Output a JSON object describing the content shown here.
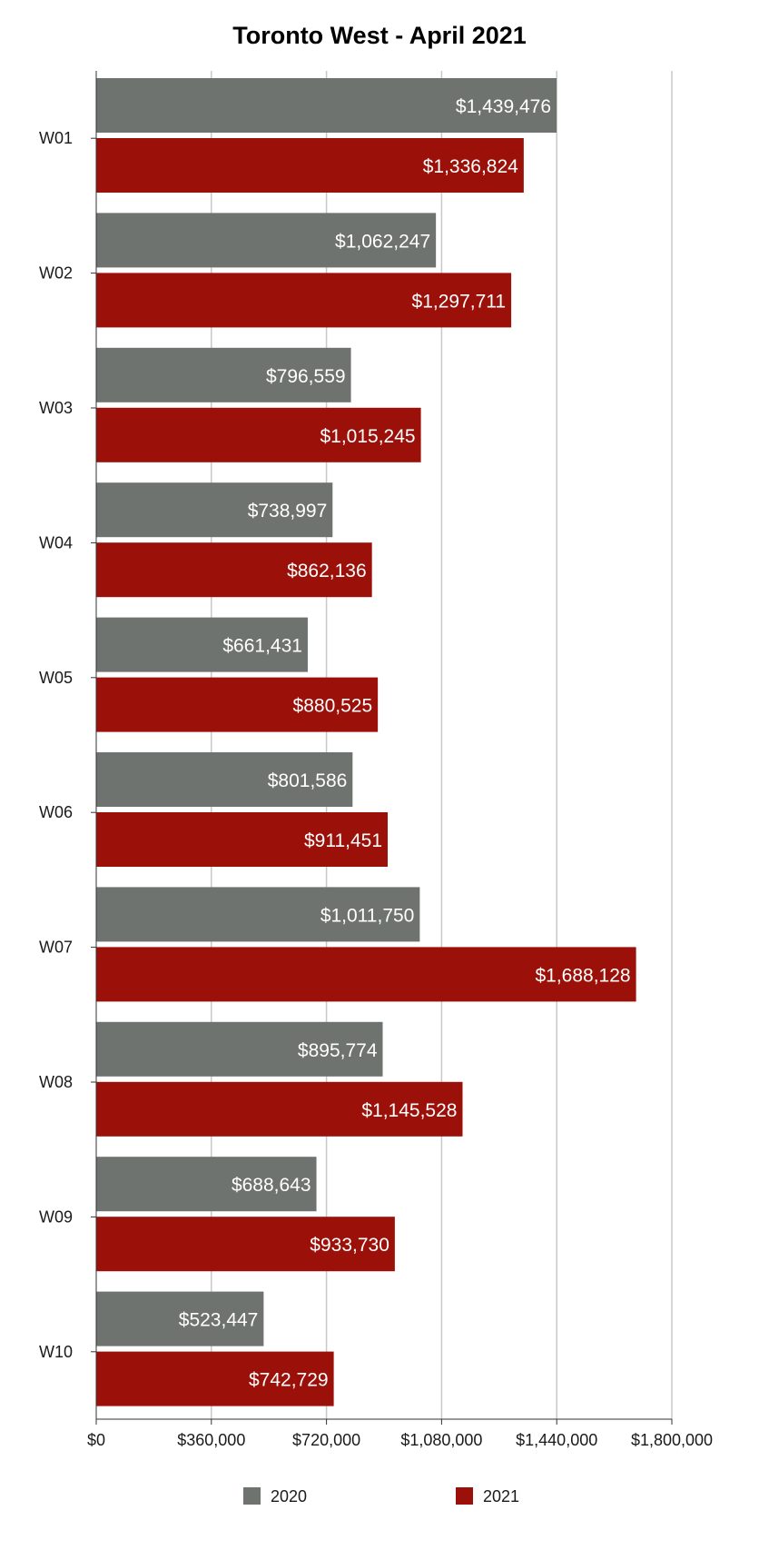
{
  "chart_data": {
    "type": "bar",
    "orientation": "horizontal",
    "title": "Toronto West - April 2021",
    "xlabel": "",
    "ylabel": "",
    "categories": [
      "W01",
      "W02",
      "W03",
      "W04",
      "W05",
      "W06",
      "W07",
      "W08",
      "W09",
      "W10"
    ],
    "series": [
      {
        "name": "2020",
        "color": "#6e7370",
        "values": [
          1439476,
          1062247,
          796559,
          738997,
          661431,
          801586,
          1011750,
          895774,
          688643,
          523447
        ],
        "labels": [
          "$1,439,476",
          "$1,062,247",
          "$796,559",
          "$738,997",
          "$661,431",
          "$801,586",
          "$1,011,750",
          "$895,774",
          "$688,643",
          "$523,447"
        ]
      },
      {
        "name": "2021",
        "color": "#9b1109",
        "values": [
          1336824,
          1297711,
          1015245,
          862136,
          880525,
          911451,
          1688128,
          1145528,
          933730,
          742729
        ],
        "labels": [
          "$1,336,824",
          "$1,297,711",
          "$1,015,245",
          "$862,136",
          "$880,525",
          "$911,451",
          "$1,688,128",
          "$1,145,528",
          "$933,730",
          "$742,729"
        ]
      }
    ],
    "xlim": [
      0,
      1800000
    ],
    "xticks": [
      0,
      360000,
      720000,
      1080000,
      1440000,
      1800000
    ],
    "xtick_labels": [
      "$0",
      "$360,000",
      "$720,000",
      "$1,080,000",
      "$1,440,000",
      "$1,800,000"
    ],
    "grid": "vertical",
    "legend": "bottom",
    "colors": {
      "grid": "#c8c8c8",
      "axis": "#333333",
      "label_text": "#ffffff"
    }
  }
}
